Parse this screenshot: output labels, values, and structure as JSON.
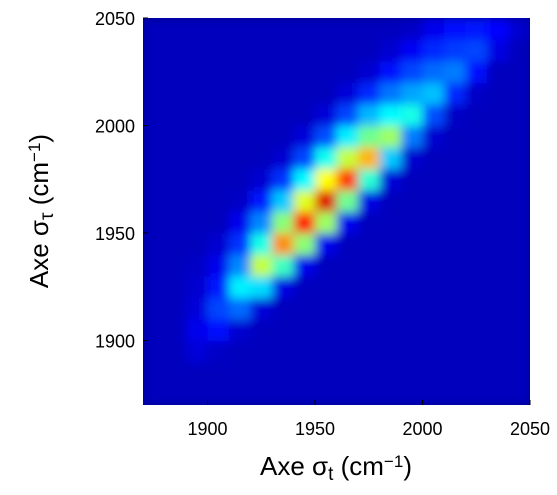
{
  "chart_data": {
    "type": "heatmap",
    "xlabel": [
      "Axe σ",
      "t",
      " (cm",
      "−1",
      ")"
    ],
    "ylabel": [
      "Axe σ",
      "τ",
      " (cm",
      "−1",
      ")"
    ],
    "colormap": "jet",
    "x": [
      1875,
      1885,
      1895,
      1905,
      1915,
      1925,
      1935,
      1945,
      1955,
      1965,
      1975,
      1985,
      1995,
      2005,
      2015,
      2025,
      2035,
      2045
    ],
    "y": [
      1875,
      1885,
      1895,
      1905,
      1915,
      1925,
      1935,
      1945,
      1955,
      1965,
      1975,
      1985,
      1995,
      2005,
      2015,
      2025,
      2035,
      2045
    ],
    "z": [
      [
        0,
        0,
        0,
        0,
        0,
        0,
        0,
        0,
        0,
        0,
        0,
        0,
        0,
        0,
        0,
        0,
        0,
        0
      ],
      [
        0,
        0,
        0,
        0,
        0,
        0,
        0,
        0,
        0,
        0,
        0,
        0,
        0,
        0,
        0,
        0,
        0,
        0
      ],
      [
        0,
        0,
        0.03,
        0.01,
        0,
        0,
        0,
        0,
        0,
        0,
        0,
        0,
        0,
        0,
        0,
        0,
        0,
        0
      ],
      [
        0,
        0,
        0.05,
        0.08,
        0.02,
        0,
        0,
        0,
        0,
        0,
        0,
        0,
        0,
        0,
        0,
        0,
        0,
        0
      ],
      [
        0,
        0,
        0.03,
        0.14,
        0.18,
        0.03,
        0,
        0,
        0,
        0,
        0,
        0,
        0,
        0,
        0,
        0,
        0,
        0
      ],
      [
        0,
        0,
        0.02,
        0.09,
        0.32,
        0.3,
        0.04,
        0,
        0,
        0,
        0,
        0,
        0,
        0,
        0,
        0,
        0,
        0
      ],
      [
        0,
        0,
        0.01,
        0.05,
        0.21,
        0.54,
        0.4,
        0.05,
        0,
        0,
        0,
        0,
        0,
        0,
        0,
        0,
        0,
        0
      ],
      [
        0,
        0,
        0,
        0.02,
        0.12,
        0.36,
        0.72,
        0.48,
        0.05,
        0,
        0,
        0,
        0,
        0,
        0,
        0,
        0,
        0
      ],
      [
        0,
        0,
        0,
        0,
        0.05,
        0.21,
        0.48,
        0.86,
        0.5,
        0.05,
        0,
        0,
        0,
        0,
        0,
        0,
        0,
        0
      ],
      [
        0,
        0,
        0,
        0,
        0.01,
        0.09,
        0.28,
        0.57,
        0.9,
        0.45,
        0.04,
        0,
        0,
        0,
        0,
        0,
        0,
        0
      ],
      [
        0,
        0,
        0,
        0,
        0,
        0.02,
        0.12,
        0.33,
        0.6,
        0.81,
        0.38,
        0.03,
        0,
        0,
        0,
        0,
        0,
        0
      ],
      [
        0,
        0,
        0,
        0,
        0,
        0,
        0.02,
        0.14,
        0.35,
        0.54,
        0.68,
        0.28,
        0.02,
        0,
        0,
        0,
        0,
        0
      ],
      [
        0,
        0,
        0,
        0,
        0,
        0,
        0,
        0.03,
        0.15,
        0.32,
        0.45,
        0.5,
        0.2,
        0.02,
        0,
        0,
        0,
        0
      ],
      [
        0,
        0,
        0,
        0,
        0,
        0,
        0,
        0,
        0.03,
        0.14,
        0.26,
        0.33,
        0.36,
        0.15,
        0.01,
        0,
        0,
        0
      ],
      [
        0,
        0,
        0,
        0,
        0,
        0,
        0,
        0,
        0,
        0.03,
        0.11,
        0.19,
        0.24,
        0.27,
        0.11,
        0.01,
        0,
        0
      ],
      [
        0,
        0,
        0,
        0,
        0,
        0,
        0,
        0,
        0,
        0,
        0.02,
        0.08,
        0.14,
        0.18,
        0.2,
        0.08,
        0,
        0
      ],
      [
        0,
        0,
        0,
        0,
        0,
        0,
        0,
        0,
        0,
        0,
        0,
        0.02,
        0.06,
        0.11,
        0.13,
        0.14,
        0.04,
        0
      ],
      [
        0,
        0,
        0,
        0,
        0,
        0,
        0,
        0,
        0,
        0,
        0,
        0,
        0.01,
        0.05,
        0.08,
        0.09,
        0.07,
        0.02
      ]
    ],
    "xlim": [
      1870,
      2050
    ],
    "ylim": [
      1870,
      2050
    ],
    "xticks": [
      1900,
      1950,
      2000,
      2050
    ],
    "yticks": [
      1900,
      1950,
      2000,
      2050
    ]
  }
}
